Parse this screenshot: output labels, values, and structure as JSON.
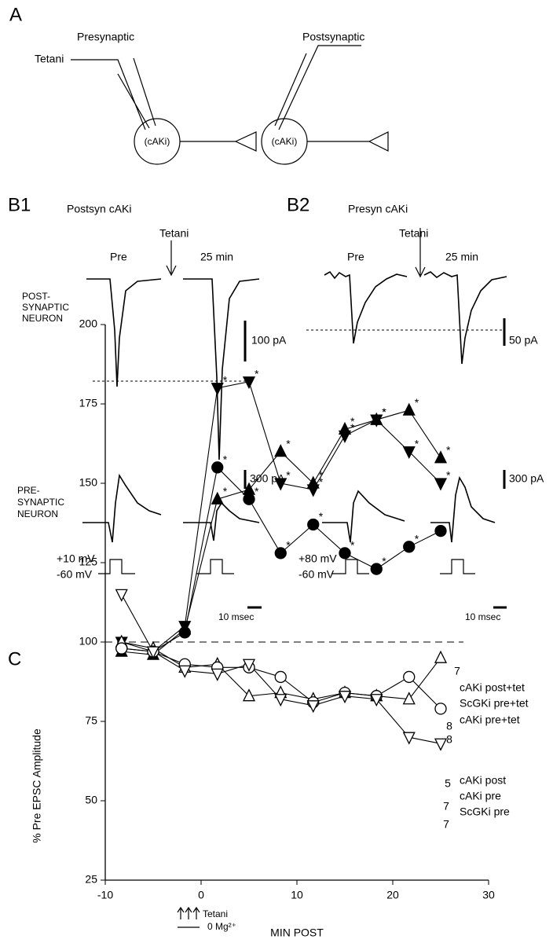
{
  "panel_a": {
    "label": "A",
    "presynaptic": "Presynaptic",
    "postsynaptic": "Postsynaptic",
    "tetani": "Tetani",
    "cell_pre": "(cAKi)",
    "cell_post": "(cAKi)"
  },
  "panel_b1": {
    "label": "B1",
    "title": "Postsyn cAKi",
    "tetani": "Tetani",
    "pre": "Pre",
    "later": "25 min",
    "post_label": [
      "POST-",
      "SYNAPTIC",
      "NEURON"
    ],
    "post_scale": "100 pA",
    "pre_label": [
      "PRE-",
      "SYNAPTIC",
      "NEURON"
    ],
    "pre_scale": "300 pA",
    "step_high": "+10 mV",
    "step_low": "-60 mV",
    "time_scale": "10 msec"
  },
  "panel_b2": {
    "label": "B2",
    "title": "Presyn cAKi",
    "tetani": "Tetani",
    "pre": "Pre",
    "later": "25 min",
    "post_scale": "50 pA",
    "pre_scale": "300 pA",
    "step_high": "+80 mV",
    "step_low": "-60 mV",
    "time_scale": "10 msec"
  },
  "chart_data": {
    "type": "line",
    "panel_label": "C",
    "y_label": "% Pre EPSC Amplitude",
    "x_label": "MIN POST",
    "xlim": [
      -10,
      30
    ],
    "xticks": [
      -10,
      0,
      10,
      20,
      30
    ],
    "ylim": [
      25,
      200
    ],
    "yticks": [
      25,
      50,
      75,
      100,
      125,
      150,
      175,
      200
    ],
    "reference_line": 100,
    "significance_marker": "*",
    "legend_tetani": "Tetani",
    "legend_mg": "0 Mg²⁺",
    "x": [
      -8.3,
      -5,
      -1.7,
      1.7,
      5,
      8.3,
      11.7,
      15,
      18.3,
      21.7,
      25
    ],
    "series": [
      {
        "name": "cAKi post+tet",
        "color": "#000000",
        "marker": "triangle-up",
        "filled": true,
        "n": "7",
        "values": [
          97,
          96,
          104,
          145,
          148,
          160,
          150,
          167,
          170,
          173,
          158
        ],
        "significant": [
          false,
          false,
          false,
          true,
          true,
          true,
          true,
          true,
          true,
          true,
          true
        ]
      },
      {
        "name": "ScGKi pre+tet",
        "color": "#000000",
        "marker": "triangle-down",
        "filled": true,
        "n": "8",
        "values": [
          100,
          97,
          105,
          180,
          182,
          150,
          148,
          165,
          170,
          160,
          150
        ],
        "significant": [
          false,
          false,
          false,
          true,
          true,
          true,
          true,
          true,
          true,
          true,
          true
        ]
      },
      {
        "name": "cAKi pre+tet",
        "color": "#000000",
        "marker": "circle",
        "filled": true,
        "n": "8",
        "values": [
          98,
          97,
          103,
          155,
          145,
          128,
          137,
          128,
          123,
          130,
          135
        ],
        "significant": [
          false,
          false,
          false,
          true,
          true,
          true,
          true,
          true,
          true,
          true,
          false
        ]
      },
      {
        "name": "cAKi post",
        "color": "#000000",
        "marker": "triangle-up",
        "filled": false,
        "n": "5",
        "values": [
          100,
          98,
          92,
          93,
          83,
          84,
          82,
          84,
          83,
          82,
          95
        ],
        "significant": [
          false,
          false,
          false,
          false,
          false,
          false,
          false,
          false,
          false,
          false,
          false
        ]
      },
      {
        "name": "cAKi pre",
        "color": "#000000",
        "marker": "circle",
        "filled": false,
        "n": "7",
        "values": [
          98,
          97,
          93,
          92,
          92,
          89,
          81,
          84,
          83,
          89,
          79
        ],
        "significant": [
          false,
          false,
          false,
          false,
          false,
          false,
          false,
          false,
          false,
          false,
          false
        ]
      },
      {
        "name": "ScGKi pre",
        "color": "#000000",
        "marker": "triangle-down",
        "filled": false,
        "n": "7",
        "values": [
          115,
          97,
          91,
          90,
          93,
          82,
          80,
          83,
          82,
          70,
          68
        ],
        "significant": [
          false,
          false,
          false,
          false,
          false,
          false,
          false,
          false,
          false,
          false,
          false
        ]
      }
    ]
  }
}
